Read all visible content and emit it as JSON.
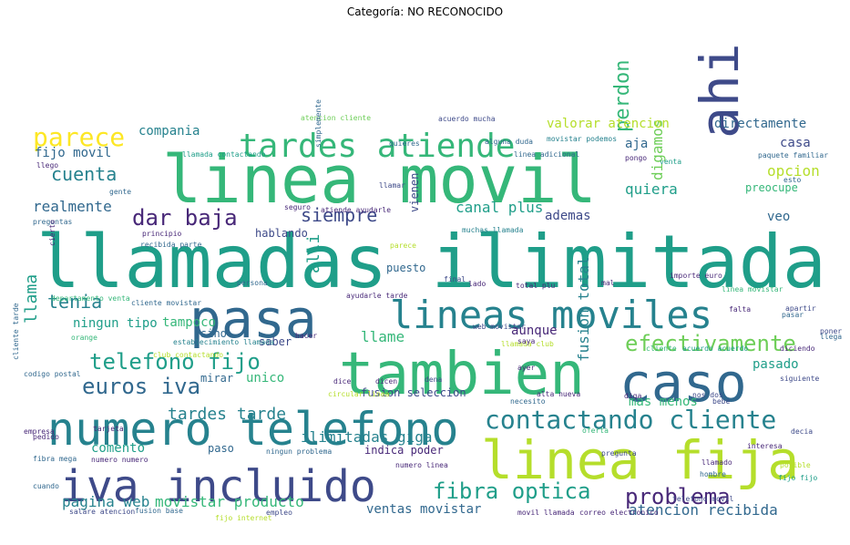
{
  "figure_title": "Categoría: NO RECONOCIDO",
  "chart_data": {
    "type": "wordcloud",
    "title": "Categoría: NO RECONOCIDO",
    "palette": [
      "#440154",
      "#482878",
      "#3e4a89",
      "#31688e",
      "#26828e",
      "#1f9e89",
      "#35b779",
      "#6ece58",
      "#b5de2b",
      "#fde725"
    ],
    "words": [
      {
        "text": "llamadas ilimitada",
        "weight": 100,
        "color": "#1f9e89"
      },
      {
        "text": "linea movil",
        "weight": 88,
        "color": "#35b779"
      },
      {
        "text": "tambien",
        "weight": 72,
        "color": "#35b779"
      },
      {
        "text": "caso",
        "weight": 70,
        "color": "#31688e"
      },
      {
        "text": "pasa",
        "weight": 66,
        "color": "#31688e"
      },
      {
        "text": "linea fija",
        "weight": 66,
        "color": "#b5de2b"
      },
      {
        "text": "numero telefono",
        "weight": 60,
        "color": "#26828e"
      },
      {
        "text": "iva incluido",
        "weight": 60,
        "color": "#3e4a89"
      },
      {
        "text": "ahi",
        "weight": 58,
        "color": "#3e4a89"
      },
      {
        "text": "lineas moviles",
        "weight": 56,
        "color": "#26828e"
      },
      {
        "text": "tardes atiende",
        "weight": 46,
        "color": "#35b779"
      },
      {
        "text": "contactando cliente",
        "weight": 38,
        "color": "#26828e"
      },
      {
        "text": "parece",
        "weight": 32,
        "color": "#fde725"
      },
      {
        "text": "problema",
        "weight": 30,
        "color": "#482878"
      },
      {
        "text": "efectivamente",
        "weight": 30,
        "color": "#6ece58"
      },
      {
        "text": "fibra optica",
        "weight": 30,
        "color": "#1f9e89"
      },
      {
        "text": "dar baja",
        "weight": 30,
        "color": "#482878"
      },
      {
        "text": "telefono fijo",
        "weight": 30,
        "color": "#1f9e89"
      },
      {
        "text": "euros iva",
        "weight": 28,
        "color": "#31688e"
      },
      {
        "text": "cuenta",
        "weight": 28,
        "color": "#26828e"
      },
      {
        "text": "siempre",
        "weight": 28,
        "color": "#3e4a89"
      },
      {
        "text": "perdon",
        "weight": 28,
        "color": "#35b779"
      },
      {
        "text": "tenia",
        "weight": 26,
        "color": "#26828e"
      },
      {
        "text": "llama",
        "weight": 24,
        "color": "#1f9e89"
      },
      {
        "text": "alli",
        "weight": 22,
        "color": "#1f9e89"
      },
      {
        "text": "tardes tarde",
        "weight": 24,
        "color": "#26828e"
      },
      {
        "text": "pagina web",
        "weight": 22,
        "color": "#26828e"
      },
      {
        "text": "movistar producto",
        "weight": 22,
        "color": "#35b779"
      },
      {
        "text": "ilimitadas giga",
        "weight": 20,
        "color": "#26828e"
      },
      {
        "text": "atencion recibida",
        "weight": 20,
        "color": "#31688e"
      },
      {
        "text": "ventas movistar",
        "weight": 20,
        "color": "#31688e"
      },
      {
        "text": "fusion total",
        "weight": 20,
        "color": "#26828e"
      },
      {
        "text": "llame",
        "weight": 20,
        "color": "#35b779"
      },
      {
        "text": "opcion",
        "weight": 20,
        "color": "#b5de2b"
      },
      {
        "text": "quiera",
        "weight": 20,
        "color": "#1f9e89"
      },
      {
        "text": "digamos",
        "weight": 18,
        "color": "#6ece58"
      },
      {
        "text": "canal plus",
        "weight": 18,
        "color": "#1f9e89"
      },
      {
        "text": "realmente",
        "weight": 18,
        "color": "#31688e"
      },
      {
        "text": "ningun tipo",
        "weight": 18,
        "color": "#1f9e89"
      },
      {
        "text": "tampoco",
        "weight": 18,
        "color": "#35b779"
      },
      {
        "text": "compania",
        "weight": 17,
        "color": "#26828e"
      },
      {
        "text": "fijo movil",
        "weight": 17,
        "color": "#31688e"
      },
      {
        "text": "aja",
        "weight": 17,
        "color": "#31688e"
      },
      {
        "text": "ademas",
        "weight": 16,
        "color": "#3e4a89"
      },
      {
        "text": "veo",
        "weight": 16,
        "color": "#31688e"
      },
      {
        "text": "pasado",
        "weight": 16,
        "color": "#1f9e89"
      },
      {
        "text": "comento",
        "weight": 16,
        "color": "#1f9e89"
      },
      {
        "text": "aunque",
        "weight": 16,
        "color": "#482878"
      },
      {
        "text": "mas menos",
        "weight": 16,
        "color": "#35b779"
      },
      {
        "text": "directamente",
        "weight": 16,
        "color": "#31688e"
      },
      {
        "text": "valorar atencion",
        "weight": 15,
        "color": "#b5de2b"
      },
      {
        "text": "unico",
        "weight": 15,
        "color": "#35b779"
      },
      {
        "text": "casa",
        "weight": 15,
        "color": "#3e4a89"
      },
      {
        "text": "preocupe",
        "weight": 14,
        "color": "#35b779"
      },
      {
        "text": "saber",
        "weight": 14,
        "color": "#3e4a89"
      },
      {
        "text": "sino",
        "weight": 14,
        "color": "#31688e"
      },
      {
        "text": "paso",
        "weight": 14,
        "color": "#31688e"
      },
      {
        "text": "puesto",
        "weight": 14,
        "color": "#31688e"
      },
      {
        "text": "hablando",
        "weight": 14,
        "color": "#3e4a89"
      },
      {
        "text": "vienen",
        "weight": 14,
        "color": "#3e4a89"
      },
      {
        "text": "mirar",
        "weight": 13,
        "color": "#31688e"
      },
      {
        "text": "fusion seleccion",
        "weight": 13,
        "color": "#3e4a89"
      },
      {
        "text": "indica poder",
        "weight": 13,
        "color": "#482878"
      },
      {
        "text": "linea adicional",
        "weight": 8,
        "color": "#31688e"
      },
      {
        "text": "llamada contactando",
        "weight": 8,
        "color": "#1f9e89"
      },
      {
        "text": "atencion cliente",
        "weight": 8,
        "color": "#6ece58"
      },
      {
        "text": "acuerdo mucha",
        "weight": 8,
        "color": "#3e4a89"
      },
      {
        "text": "movistar podemos",
        "weight": 8,
        "color": "#26828e"
      },
      {
        "text": "paquete familiar",
        "weight": 8,
        "color": "#31688e"
      },
      {
        "text": "alguna duda",
        "weight": 7,
        "color": "#31688e"
      },
      {
        "text": "quieres",
        "weight": 7,
        "color": "#31688e"
      },
      {
        "text": "llego",
        "weight": 7,
        "color": "#482878"
      },
      {
        "text": "simplemente",
        "weight": 7,
        "color": "#31688e"
      },
      {
        "text": "llamar",
        "weight": 7,
        "color": "#3e4a89"
      },
      {
        "text": "preguntas",
        "weight": 7,
        "color": "#31688e"
      },
      {
        "text": "principio",
        "weight": 7,
        "color": "#482878"
      },
      {
        "text": "recibida parte",
        "weight": 7,
        "color": "#31688e"
      },
      {
        "text": "muchas llamada",
        "weight": 7,
        "color": "#26828e"
      },
      {
        "text": "atiende ayudarle",
        "weight": 7,
        "color": "#482878"
      },
      {
        "text": "seguro",
        "weight": 7,
        "color": "#482878"
      },
      {
        "text": "final",
        "weight": 7,
        "color": "#3e4a89"
      },
      {
        "text": "total plu",
        "weight": 7,
        "color": "#482878"
      },
      {
        "text": "importe euro",
        "weight": 7,
        "color": "#482878"
      },
      {
        "text": "linea movistar",
        "weight": 7,
        "color": "#35b779"
      },
      {
        "text": "departamento venta",
        "weight": 7,
        "color": "#35b779"
      },
      {
        "text": "cliente movistar",
        "weight": 7,
        "color": "#31688e"
      },
      {
        "text": "ayudarle tarde",
        "weight": 7,
        "color": "#482878"
      },
      {
        "text": "web movistar",
        "weight": 7,
        "color": "#3e4a89"
      },
      {
        "text": "orange",
        "weight": 7,
        "color": "#35b779"
      },
      {
        "text": "cliente tarde",
        "weight": 7,
        "color": "#31688e"
      },
      {
        "text": "club contactando",
        "weight": 7,
        "color": "#b5de2b"
      },
      {
        "text": "cliente",
        "weight": 7,
        "color": "#35b779"
      },
      {
        "text": "acuerdo acuerdo",
        "weight": 7,
        "color": "#1f9e89"
      },
      {
        "text": "diciendo",
        "weight": 7,
        "color": "#482878"
      },
      {
        "text": "siguiente",
        "weight": 7,
        "color": "#3e4a89"
      },
      {
        "text": "codigo postal",
        "weight": 7,
        "color": "#31688e"
      },
      {
        "text": "establecimiento llamada",
        "weight": 7,
        "color": "#26828e"
      },
      {
        "text": "circular linea",
        "weight": 7,
        "color": "#b5de2b"
      },
      {
        "text": "necesito",
        "weight": 7,
        "color": "#31688e"
      },
      {
        "text": "alta nueva",
        "weight": 7,
        "color": "#482878"
      },
      {
        "text": "diga",
        "weight": 7,
        "color": "#482878"
      },
      {
        "text": "nos dos",
        "weight": 7,
        "color": "#3e4a89"
      },
      {
        "text": "bebe",
        "weight": 7,
        "color": "#3e4a89"
      },
      {
        "text": "pedido",
        "weight": 7,
        "color": "#482878"
      },
      {
        "text": "fibra mega",
        "weight": 7,
        "color": "#31688e"
      },
      {
        "text": "tarjeta",
        "weight": 7,
        "color": "#482878"
      },
      {
        "text": "oferta",
        "weight": 7,
        "color": "#35b779"
      },
      {
        "text": "pregunta",
        "weight": 7,
        "color": "#3e4a89"
      },
      {
        "text": "decia",
        "weight": 7,
        "color": "#3e4a89"
      },
      {
        "text": "posible",
        "weight": 7,
        "color": "#b5de2b"
      },
      {
        "text": "fijo fijo",
        "weight": 7,
        "color": "#1f9e89"
      },
      {
        "text": "ningun problema",
        "weight": 7,
        "color": "#31688e"
      },
      {
        "text": "numero linea",
        "weight": 7,
        "color": "#482878"
      },
      {
        "text": "numero numero",
        "weight": 7,
        "color": "#482878"
      },
      {
        "text": "salare atencion",
        "weight": 7,
        "color": "#3e4a89"
      },
      {
        "text": "fusion base",
        "weight": 7,
        "color": "#31688e"
      },
      {
        "text": "fijo internet",
        "weight": 7,
        "color": "#b5de2b"
      },
      {
        "text": "empleo",
        "weight": 7,
        "color": "#3e4a89"
      },
      {
        "text": "movil llamada",
        "weight": 7,
        "color": "#482878"
      },
      {
        "text": "correo electronico",
        "weight": 7,
        "color": "#482878"
      },
      {
        "text": "telefono movil",
        "weight": 7,
        "color": "#3e4a89"
      },
      {
        "text": "llamada club",
        "weight": 7,
        "color": "#b5de2b"
      },
      {
        "text": "llega",
        "weight": 7,
        "color": "#31688e"
      },
      {
        "text": "poner",
        "weight": 7,
        "color": "#3e4a89"
      },
      {
        "text": "pasar",
        "weight": 7,
        "color": "#31688e"
      },
      {
        "text": "apartir",
        "weight": 7,
        "color": "#3e4a89"
      },
      {
        "text": "falta",
        "weight": 7,
        "color": "#482878"
      },
      {
        "text": "mal",
        "weight": 7,
        "color": "#482878"
      },
      {
        "text": "venta",
        "weight": 7,
        "color": "#1f9e89"
      },
      {
        "text": "pongo",
        "weight": 7,
        "color": "#482878"
      },
      {
        "text": "parece",
        "weight": 7,
        "color": "#b5de2b"
      },
      {
        "text": "hacer",
        "weight": 7,
        "color": "#482878"
      },
      {
        "text": "lado",
        "weight": 7,
        "color": "#482878"
      },
      {
        "text": "ayer",
        "weight": 7,
        "color": "#482878"
      },
      {
        "text": "saya",
        "weight": 7,
        "color": "#482878"
      },
      {
        "text": "empresa",
        "weight": 7,
        "color": "#482878"
      },
      {
        "text": "interesa",
        "weight": 7,
        "color": "#482878"
      },
      {
        "text": "llamado",
        "weight": 7,
        "color": "#482878"
      },
      {
        "text": "hombre",
        "weight": 7,
        "color": "#31688e"
      },
      {
        "text": "cuando",
        "weight": 7,
        "color": "#31688e"
      },
      {
        "text": "dice",
        "weight": 7,
        "color": "#482878"
      },
      {
        "text": "dicen",
        "weight": 7,
        "color": "#482878"
      },
      {
        "text": "dena",
        "weight": 7,
        "color": "#3e4a89"
      },
      {
        "text": "cierto",
        "weight": 7,
        "color": "#482878"
      },
      {
        "text": "esto",
        "weight": 7,
        "color": "#31688e"
      },
      {
        "text": "gente",
        "weight": 7,
        "color": "#31688e"
      },
      {
        "text": "persona",
        "weight": 7,
        "color": "#31688e"
      },
      {
        "text": "veces",
        "weight": 7,
        "color": "#3e4a89"
      },
      {
        "text": "linea linea",
        "weight": 7,
        "color": "#b5de2b"
      },
      {
        "text": "contratado",
        "weight": 7,
        "color": "#b5de2b"
      }
    ]
  }
}
